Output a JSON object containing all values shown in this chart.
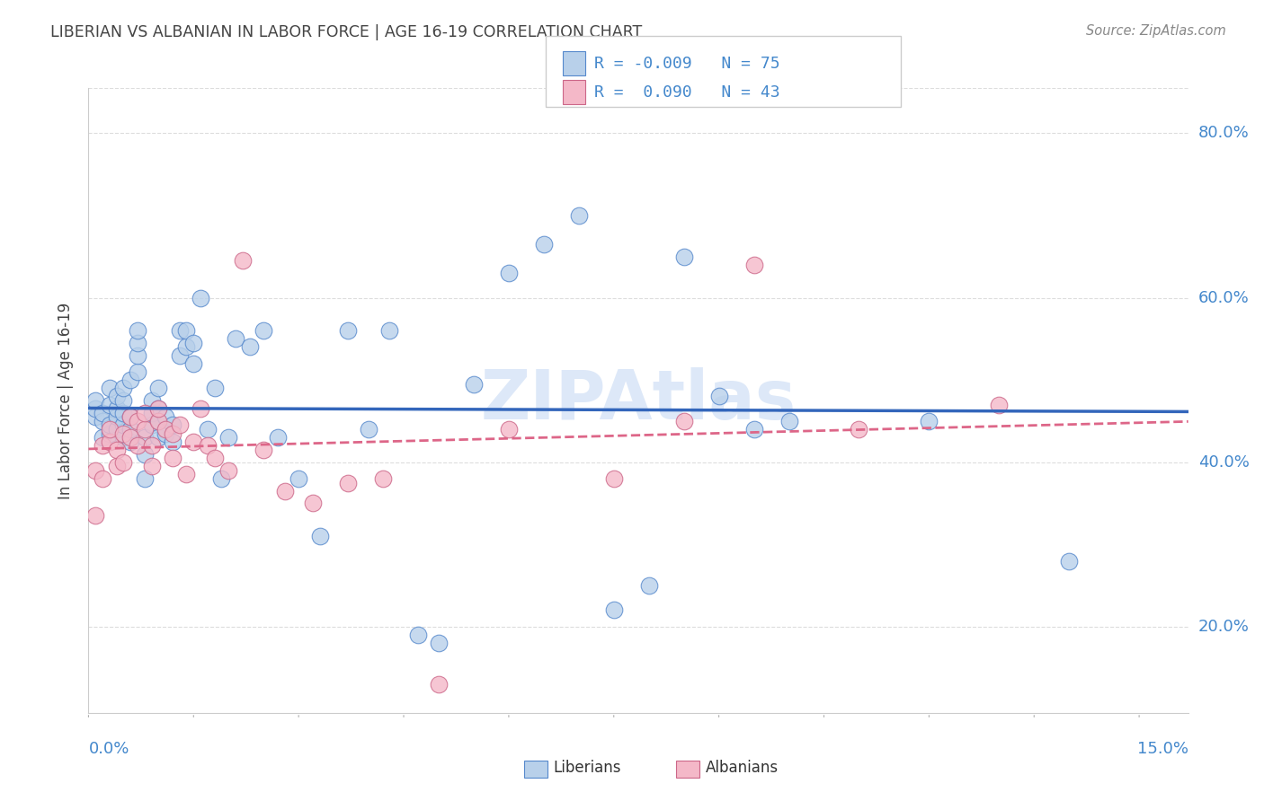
{
  "title": "LIBERIAN VS ALBANIAN IN LABOR FORCE | AGE 16-19 CORRELATION CHART",
  "source": "Source: ZipAtlas.com",
  "xlim": [
    0.0,
    0.157
  ],
  "ylim": [
    0.095,
    0.855
  ],
  "liberian_R": -0.009,
  "liberian_N": 75,
  "albanian_R": 0.09,
  "albanian_N": 43,
  "blue_fill": "#b8d0ea",
  "blue_edge": "#5588cc",
  "pink_fill": "#f4b8c8",
  "pink_edge": "#cc6688",
  "blue_line": "#3366bb",
  "pink_line": "#dd6688",
  "title_color": "#444444",
  "source_color": "#888888",
  "axis_color": "#4488cc",
  "watermark_color": "#dde8f8",
  "grid_color": "#dddddd",
  "bg_color": "#ffffff",
  "yticks": [
    0.2,
    0.4,
    0.6,
    0.8
  ],
  "ytick_labels": [
    "20.0%",
    "40.0%",
    "60.0%",
    "80.0%"
  ],
  "yticks_minor": [
    0.1,
    0.3,
    0.5,
    0.7
  ],
  "lib_x": [
    0.001,
    0.001,
    0.001,
    0.002,
    0.002,
    0.002,
    0.003,
    0.003,
    0.003,
    0.003,
    0.004,
    0.004,
    0.004,
    0.004,
    0.005,
    0.005,
    0.005,
    0.005,
    0.005,
    0.006,
    0.006,
    0.006,
    0.006,
    0.007,
    0.007,
    0.007,
    0.007,
    0.008,
    0.008,
    0.008,
    0.009,
    0.009,
    0.009,
    0.01,
    0.01,
    0.01,
    0.01,
    0.011,
    0.011,
    0.012,
    0.012,
    0.013,
    0.013,
    0.014,
    0.014,
    0.015,
    0.015,
    0.016,
    0.017,
    0.018,
    0.019,
    0.02,
    0.021,
    0.023,
    0.025,
    0.027,
    0.03,
    0.033,
    0.037,
    0.04,
    0.043,
    0.047,
    0.05,
    0.055,
    0.06,
    0.065,
    0.07,
    0.075,
    0.08,
    0.085,
    0.09,
    0.095,
    0.1,
    0.12,
    0.14
  ],
  "lib_y": [
    0.455,
    0.465,
    0.475,
    0.43,
    0.45,
    0.46,
    0.435,
    0.445,
    0.47,
    0.49,
    0.44,
    0.455,
    0.465,
    0.48,
    0.43,
    0.445,
    0.46,
    0.475,
    0.49,
    0.425,
    0.44,
    0.455,
    0.5,
    0.51,
    0.53,
    0.545,
    0.56,
    0.38,
    0.41,
    0.43,
    0.445,
    0.46,
    0.475,
    0.43,
    0.45,
    0.465,
    0.49,
    0.435,
    0.455,
    0.425,
    0.445,
    0.53,
    0.56,
    0.54,
    0.56,
    0.52,
    0.545,
    0.6,
    0.44,
    0.49,
    0.38,
    0.43,
    0.55,
    0.54,
    0.56,
    0.43,
    0.38,
    0.31,
    0.56,
    0.44,
    0.56,
    0.19,
    0.18,
    0.495,
    0.63,
    0.665,
    0.7,
    0.22,
    0.25,
    0.65,
    0.48,
    0.44,
    0.45,
    0.45,
    0.28
  ],
  "alb_x": [
    0.001,
    0.001,
    0.002,
    0.002,
    0.003,
    0.003,
    0.004,
    0.004,
    0.005,
    0.005,
    0.006,
    0.006,
    0.007,
    0.007,
    0.008,
    0.008,
    0.009,
    0.009,
    0.01,
    0.01,
    0.011,
    0.012,
    0.012,
    0.013,
    0.014,
    0.015,
    0.016,
    0.017,
    0.018,
    0.02,
    0.022,
    0.025,
    0.028,
    0.032,
    0.037,
    0.042,
    0.05,
    0.06,
    0.075,
    0.085,
    0.095,
    0.11,
    0.13
  ],
  "alb_y": [
    0.335,
    0.39,
    0.38,
    0.42,
    0.425,
    0.44,
    0.395,
    0.415,
    0.4,
    0.435,
    0.43,
    0.455,
    0.42,
    0.45,
    0.44,
    0.46,
    0.395,
    0.42,
    0.45,
    0.465,
    0.44,
    0.405,
    0.435,
    0.445,
    0.385,
    0.425,
    0.465,
    0.42,
    0.405,
    0.39,
    0.645,
    0.415,
    0.365,
    0.35,
    0.375,
    0.38,
    0.13,
    0.44,
    0.38,
    0.45,
    0.64,
    0.44,
    0.47
  ]
}
